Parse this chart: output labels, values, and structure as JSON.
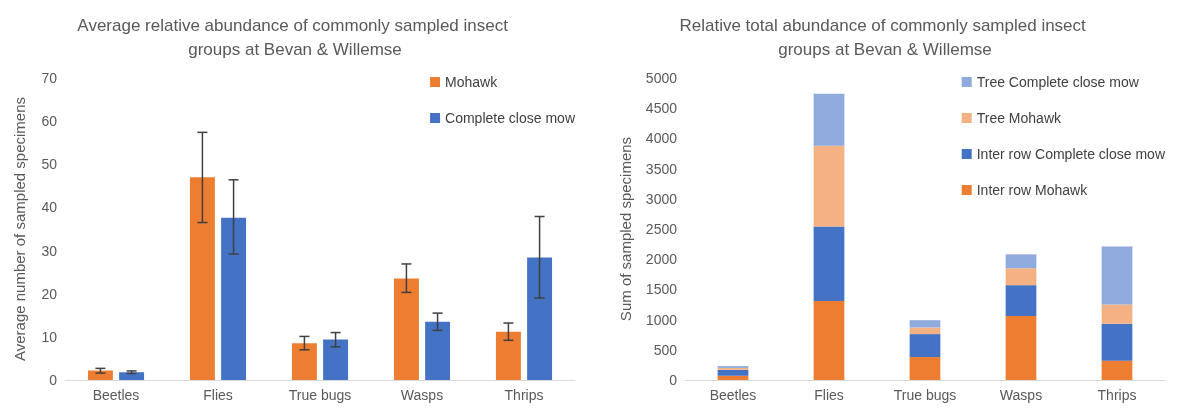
{
  "chart_data": [
    {
      "type": "bar",
      "title": "Average relative abundance of commonly sampled insect groups at Bevan & Willemse",
      "ylabel": "Average number of sampled specimens",
      "categories": [
        "Beetles",
        "Flies",
        "True bugs",
        "Wasps",
        "Thrips"
      ],
      "series": [
        {
          "name": "Mohawk",
          "color": "#ed7d31",
          "values": [
            2.2,
            47,
            8.5,
            23.5,
            11.2
          ],
          "errors": [
            [
              1.6,
              2.7
            ],
            [
              36.5,
              57.4
            ],
            [
              7,
              10.1
            ],
            [
              20.3,
              26.9
            ],
            [
              9.2,
              13.2
            ]
          ]
        },
        {
          "name": "Complete close mow",
          "color": "#4472c4",
          "values": [
            1.8,
            37.6,
            9.4,
            13.5,
            28.4
          ],
          "errors": [
            [
              1.5,
              2.1
            ],
            [
              29.2,
              46.4
            ],
            [
              7.7,
              11
            ],
            [
              11.5,
              15.5
            ],
            [
              19,
              37.9
            ]
          ]
        }
      ],
      "ylim": [
        0,
        70
      ],
      "yticks": [
        0,
        10,
        20,
        30,
        40,
        50,
        60,
        70
      ],
      "grid": false,
      "legend": "top right"
    },
    {
      "type": "bar",
      "stacked": true,
      "title": "Relative total abundance of commonly sampled insect groups at Bevan & Willemse",
      "ylabel": "Sum of sampled specimens",
      "categories": [
        "Beetles",
        "Flies",
        "True bugs",
        "Wasps",
        "Thrips"
      ],
      "series": [
        {
          "name": "Inter row Mohawk",
          "color": "#ed7d31",
          "values": [
            70,
            1310,
            380,
            1060,
            320
          ]
        },
        {
          "name": "Inter row Complete close mow",
          "color": "#4472c4",
          "values": [
            100,
            1230,
            380,
            510,
            610
          ]
        },
        {
          "name": "Tree Mohawk",
          "color": "#f4b183",
          "values": [
            30,
            1340,
            110,
            280,
            320
          ]
        },
        {
          "name": "Tree Complete close mow",
          "color": "#8faadc",
          "values": [
            30,
            860,
            120,
            230,
            960
          ]
        }
      ],
      "ylim": [
        0,
        5000
      ],
      "yticks": [
        0,
        500,
        1000,
        1500,
        2000,
        2500,
        3000,
        3500,
        4000,
        4500,
        5000
      ],
      "grid": false,
      "legend": "top right"
    }
  ]
}
